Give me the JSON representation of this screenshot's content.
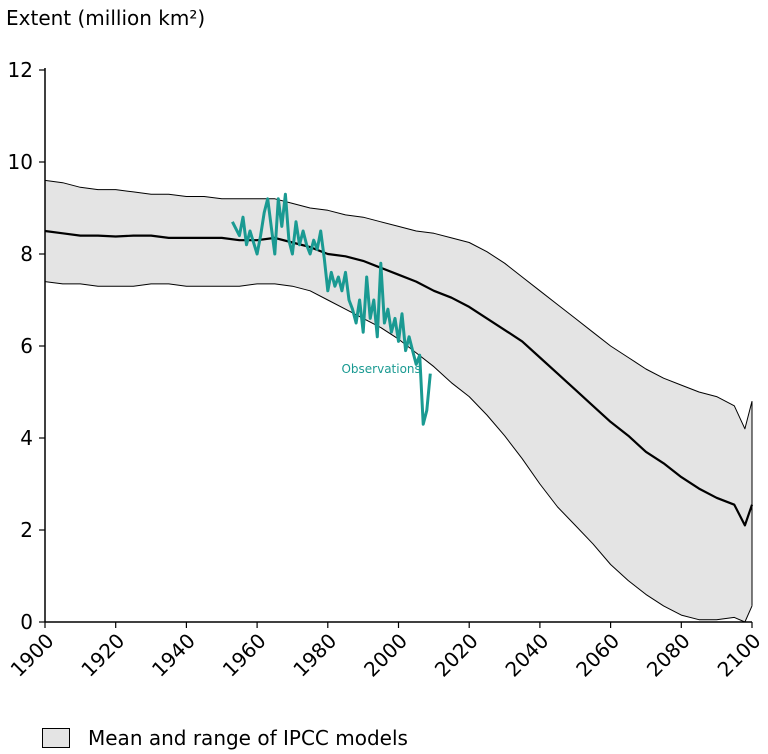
{
  "chart_data": {
    "type": "line",
    "ylabel": "Extent (million km²)",
    "ylim": [
      0,
      12
    ],
    "xlim": [
      1900,
      2100
    ],
    "yticks": [
      0,
      2,
      4,
      6,
      8,
      10,
      12
    ],
    "xticks": [
      1900,
      1920,
      1940,
      1960,
      1980,
      2000,
      2020,
      2040,
      2060,
      2080,
      2100
    ],
    "legend": [
      "Mean and range of IPCC models"
    ],
    "annotations": [
      {
        "text": "Observations",
        "x": 1985,
        "y": 5.5
      }
    ],
    "series": [
      {
        "name": "Model mean",
        "x": [
          1900,
          1905,
          1910,
          1915,
          1920,
          1925,
          1930,
          1935,
          1940,
          1945,
          1950,
          1955,
          1960,
          1965,
          1970,
          1975,
          1980,
          1985,
          1990,
          1995,
          2000,
          2005,
          2010,
          2015,
          2020,
          2025,
          2030,
          2035,
          2040,
          2045,
          2050,
          2055,
          2060,
          2065,
          2070,
          2075,
          2080,
          2085,
          2090,
          2095,
          2098,
          2100
        ],
        "values": [
          8.5,
          8.45,
          8.4,
          8.4,
          8.38,
          8.4,
          8.4,
          8.35,
          8.35,
          8.35,
          8.35,
          8.3,
          8.3,
          8.35,
          8.25,
          8.15,
          8.0,
          7.95,
          7.85,
          7.7,
          7.55,
          7.4,
          7.2,
          7.05,
          6.85,
          6.6,
          6.35,
          6.1,
          5.75,
          5.4,
          5.05,
          4.7,
          4.35,
          4.05,
          3.7,
          3.45,
          3.15,
          2.9,
          2.7,
          2.55,
          2.1,
          2.55
        ]
      },
      {
        "name": "Model range upper",
        "x": [
          1900,
          1905,
          1910,
          1915,
          1920,
          1925,
          1930,
          1935,
          1940,
          1945,
          1950,
          1955,
          1960,
          1965,
          1970,
          1975,
          1980,
          1985,
          1990,
          1995,
          2000,
          2005,
          2010,
          2015,
          2020,
          2025,
          2030,
          2035,
          2040,
          2045,
          2050,
          2055,
          2060,
          2065,
          2070,
          2075,
          2080,
          2085,
          2090,
          2095,
          2098,
          2100
        ],
        "values": [
          9.6,
          9.55,
          9.45,
          9.4,
          9.4,
          9.35,
          9.3,
          9.3,
          9.25,
          9.25,
          9.2,
          9.2,
          9.2,
          9.2,
          9.1,
          9.0,
          8.95,
          8.85,
          8.8,
          8.7,
          8.6,
          8.5,
          8.45,
          8.35,
          8.25,
          8.05,
          7.8,
          7.5,
          7.2,
          6.9,
          6.6,
          6.3,
          6.0,
          5.75,
          5.5,
          5.3,
          5.15,
          5.0,
          4.9,
          4.7,
          4.2,
          4.8
        ]
      },
      {
        "name": "Model range lower",
        "x": [
          1900,
          1905,
          1910,
          1915,
          1920,
          1925,
          1930,
          1935,
          1940,
          1945,
          1950,
          1955,
          1960,
          1965,
          1970,
          1975,
          1980,
          1985,
          1990,
          1995,
          2000,
          2005,
          2010,
          2015,
          2020,
          2025,
          2030,
          2035,
          2040,
          2045,
          2050,
          2055,
          2060,
          2065,
          2070,
          2075,
          2080,
          2085,
          2090,
          2095,
          2098,
          2100
        ],
        "values": [
          7.4,
          7.35,
          7.35,
          7.3,
          7.3,
          7.3,
          7.35,
          7.35,
          7.3,
          7.3,
          7.3,
          7.3,
          7.35,
          7.35,
          7.3,
          7.2,
          7.0,
          6.8,
          6.6,
          6.4,
          6.15,
          5.85,
          5.55,
          5.2,
          4.9,
          4.5,
          4.05,
          3.55,
          3.0,
          2.5,
          2.1,
          1.7,
          1.25,
          0.9,
          0.6,
          0.35,
          0.15,
          0.05,
          0.05,
          0.1,
          0.0,
          0.35
        ]
      },
      {
        "name": "Observations",
        "x": [
          1953,
          1955,
          1956,
          1957,
          1958,
          1960,
          1961,
          1962,
          1963,
          1964,
          1965,
          1966,
          1967,
          1968,
          1969,
          1970,
          1971,
          1972,
          1973,
          1974,
          1975,
          1976,
          1977,
          1978,
          1979,
          1980,
          1981,
          1982,
          1983,
          1984,
          1985,
          1986,
          1987,
          1988,
          1989,
          1990,
          1991,
          1992,
          1993,
          1994,
          1995,
          1996,
          1997,
          1998,
          1999,
          2000,
          2001,
          2002,
          2003,
          2004,
          2005,
          2006,
          2007,
          2008,
          2009
        ],
        "values": [
          8.7,
          8.4,
          8.8,
          8.2,
          8.5,
          8.0,
          8.4,
          8.9,
          9.2,
          8.6,
          8.0,
          9.2,
          8.6,
          9.3,
          8.3,
          8.0,
          8.7,
          8.2,
          8.5,
          8.2,
          8.0,
          8.3,
          8.1,
          8.5,
          7.9,
          7.2,
          7.6,
          7.3,
          7.5,
          7.2,
          7.6,
          7.0,
          6.8,
          6.5,
          7.0,
          6.3,
          7.5,
          6.6,
          7.0,
          6.2,
          7.8,
          6.5,
          6.8,
          6.3,
          6.6,
          6.1,
          6.7,
          5.9,
          6.2,
          5.9,
          5.6,
          5.8,
          4.3,
          4.6,
          5.4
        ]
      }
    ]
  },
  "colors": {
    "band_fill": "#e4e4e4",
    "mean_line": "#000000",
    "range_line": "#000000",
    "observations": "#1a9a92"
  }
}
